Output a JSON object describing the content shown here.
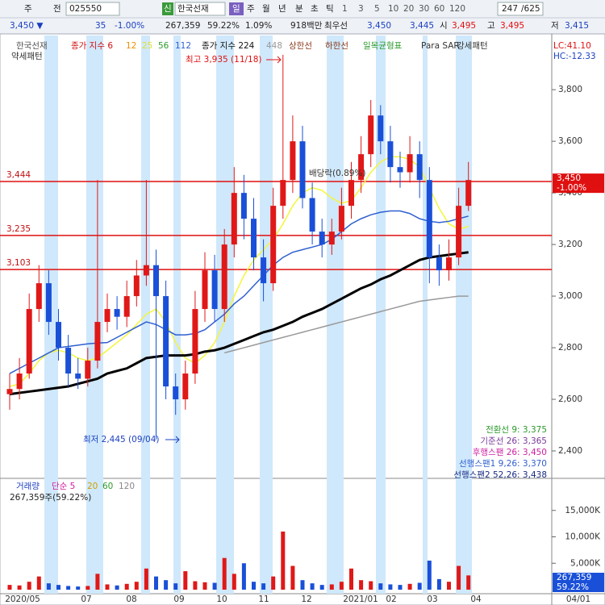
{
  "toolbar": {
    "market": "주",
    "mode": "전",
    "code": "025550",
    "badge": "신",
    "name": "한국선재",
    "periods": [
      "일",
      "주",
      "월",
      "년",
      "분",
      "초",
      "틱"
    ],
    "counts": [
      "1",
      "3",
      "5",
      "10",
      "20",
      "30",
      "60",
      "120"
    ],
    "page": "247",
    "total": "/625"
  },
  "quote": {
    "price": "3,450 ▼",
    "change": "35",
    "rate": "-1.00%",
    "volume": "267,359",
    "vol_rate": "59.22%",
    "turnover": "1.09%",
    "amount": "918백만",
    "best": "최우선",
    "ask": "3,450",
    "bid": "3,445",
    "open_label": "시",
    "open": "3,495",
    "high_label": "고",
    "high": "3,495",
    "low_label": "저",
    "low": "3,415"
  },
  "legend": {
    "name": "한국선재",
    "ma_label": "종가 지수 6",
    "ma12": "12",
    "ma25": "25",
    "ma56": "56",
    "ma112": "112",
    "ma_long": "종가 지수 224",
    "ma448": "448",
    "upper": "상한선",
    "lower": "하한선",
    "ichimoku": "일목균형표",
    "sar": "Para SAR",
    "bull": "강세패턴",
    "bear": "약세패턴",
    "lc": "LC:41.10",
    "hc": "HC:-12.33"
  },
  "indicators": [
    "전환선 9: 3,375",
    "기준선 26: 3,365",
    "후행스팬 26: 3,450",
    "선행스팬1 9,26: 3,370",
    "선행스팬2 52,26: 3,438"
  ],
  "chart_data": [
    {
      "type": "candlestick",
      "open": [
        2620,
        2640,
        2700,
        2950,
        3050,
        2900,
        2800,
        2700,
        2680,
        2750,
        2900,
        2950,
        2920,
        3000,
        3080,
        3120,
        3000,
        2650,
        2600,
        2700,
        2950,
        3100,
        2950,
        3200,
        3400,
        3300,
        3150,
        3050,
        3350,
        3450,
        3600,
        3380,
        3250,
        3200,
        3250,
        3350,
        3450,
        3550,
        3700,
        3600,
        3500,
        3480,
        3550,
        3450,
        3150,
        3100,
        3150,
        3350
      ],
      "high": [
        2700,
        2760,
        3010,
        3120,
        3100,
        2950,
        2850,
        2760,
        2800,
        3450,
        3010,
        3000,
        3060,
        3140,
        3450,
        3180,
        3060,
        2700,
        2750,
        3020,
        3170,
        3160,
        3260,
        3500,
        3470,
        3380,
        3220,
        3420,
        3935,
        3700,
        3660,
        3440,
        3300,
        3300,
        3420,
        3520,
        3620,
        3760,
        3740,
        3660,
        3560,
        3620,
        3600,
        3500,
        3200,
        3220,
        3420,
        3520
      ],
      "low": [
        2560,
        2600,
        2680,
        2900,
        2850,
        2750,
        2650,
        2640,
        2650,
        2720,
        2860,
        2870,
        2880,
        2960,
        3040,
        2445,
        2600,
        2540,
        2560,
        2660,
        2900,
        2900,
        2900,
        3150,
        3220,
        3100,
        2980,
        3020,
        3300,
        3400,
        3340,
        3200,
        3150,
        3160,
        3220,
        3300,
        3400,
        3500,
        3550,
        3440,
        3420,
        3440,
        3380,
        3050,
        3040,
        3060,
        3120,
        3330
      ],
      "close": [
        2640,
        2700,
        2950,
        3050,
        2900,
        2800,
        2700,
        2680,
        2750,
        2900,
        2950,
        2920,
        3000,
        3080,
        3120,
        3000,
        2650,
        2600,
        2700,
        2950,
        3100,
        2950,
        3200,
        3400,
        3300,
        3150,
        3050,
        3350,
        3450,
        3600,
        3380,
        3250,
        3200,
        3250,
        3350,
        3450,
        3550,
        3700,
        3600,
        3500,
        3480,
        3550,
        3450,
        3150,
        3100,
        3150,
        3350,
        3450
      ],
      "series": [
        {
          "name": "25",
          "color": "#f5f53a",
          "values": [
            2650,
            2660,
            2700,
            2750,
            2780,
            2790,
            2780,
            2760,
            2750,
            2760,
            2790,
            2820,
            2850,
            2890,
            2930,
            2950,
            2900,
            2820,
            2760,
            2740,
            2770,
            2820,
            2900,
            3000,
            3080,
            3140,
            3180,
            3220,
            3280,
            3350,
            3400,
            3420,
            3410,
            3380,
            3360,
            3370,
            3420,
            3480,
            3520,
            3540,
            3540,
            3530,
            3500,
            3420,
            3340,
            3280,
            3260,
            3270
          ]
        },
        {
          "name": "112",
          "color": "#2f5fd0",
          "values": [
            2700,
            2720,
            2740,
            2760,
            2780,
            2800,
            2805,
            2810,
            2815,
            2818,
            2820,
            2840,
            2860,
            2880,
            2900,
            2890,
            2870,
            2850,
            2850,
            2855,
            2870,
            2900,
            2930,
            2970,
            3000,
            3040,
            3080,
            3120,
            3150,
            3170,
            3180,
            3190,
            3200,
            3220,
            3250,
            3280,
            3300,
            3315,
            3325,
            3330,
            3330,
            3320,
            3300,
            3290,
            3285,
            3290,
            3300,
            3310
          ]
        },
        {
          "name": "종가 지수 224",
          "color": "#000000",
          "values": [
            2620,
            2625,
            2630,
            2635,
            2640,
            2645,
            2650,
            2660,
            2670,
            2680,
            2700,
            2710,
            2720,
            2740,
            2760,
            2765,
            2770,
            2770,
            2770,
            2775,
            2785,
            2790,
            2800,
            2815,
            2830,
            2845,
            2860,
            2870,
            2885,
            2900,
            2920,
            2935,
            2950,
            2970,
            2990,
            3010,
            3030,
            3045,
            3065,
            3080,
            3100,
            3120,
            3140,
            3150,
            3155,
            3160,
            3165,
            3170
          ]
        },
        {
          "name": "448",
          "color": "#999999",
          "values": [
            null,
            null,
            null,
            null,
            null,
            null,
            null,
            null,
            null,
            null,
            null,
            null,
            null,
            null,
            null,
            null,
            null,
            null,
            null,
            null,
            null,
            null,
            2780,
            2790,
            2800,
            2810,
            2820,
            2830,
            2840,
            2850,
            2860,
            2870,
            2880,
            2890,
            2900,
            2910,
            2920,
            2930,
            2940,
            2950,
            2960,
            2970,
            2980,
            2985,
            2990,
            2995,
            3000,
            3000
          ]
        }
      ],
      "ylim": [
        2300,
        4010
      ],
      "yticks": [
        {
          "value": 2400,
          "label": "2,400"
        },
        {
          "value": 2600,
          "label": "2,600"
        },
        {
          "value": 2800,
          "label": "2,800"
        },
        {
          "value": 3000,
          "label": "3,000"
        },
        {
          "value": 3200,
          "label": "3,200"
        },
        {
          "value": 3400,
          "label": "3,400"
        },
        {
          "value": 3600,
          "label": "3,600"
        },
        {
          "value": 3800,
          "label": "3,800"
        }
      ],
      "hlines": [
        {
          "value": 3444,
          "label": "3,444"
        },
        {
          "value": 3235,
          "label": "3,235"
        },
        {
          "value": 3103,
          "label": "3,103"
        }
      ],
      "last": {
        "value": 3450,
        "label": "3,450"
      },
      "last_change": "-1.00%",
      "annotations": {
        "max": "최고 3,935 (11/18)",
        "min": "최저 2,445 (09/04)",
        "dividend": "배당락(0.89%)"
      },
      "xticks": [
        "2020/05",
        "07",
        "08",
        "09",
        "10",
        "11",
        "12",
        "2021/01",
        "02",
        "03",
        "04"
      ],
      "xend": "04/01"
    },
    {
      "type": "bar",
      "name": "거래량",
      "legend": [
        "단순 5",
        "20",
        "60",
        "120"
      ],
      "caption": "267,359주(59.22%)",
      "values": [
        900,
        800,
        1500,
        2500,
        1200,
        900,
        700,
        600,
        700,
        3000,
        1000,
        800,
        1100,
        1500,
        4000,
        2500,
        1800,
        1200,
        3500,
        1600,
        1400,
        1300,
        6000,
        3000,
        5000,
        1500,
        1200,
        2500,
        11000,
        4500,
        1800,
        1200,
        900,
        1000,
        1500,
        4000,
        1800,
        1600,
        1200,
        1000,
        900,
        1100,
        1300,
        5500,
        2000,
        1500,
        4500,
        2700
      ],
      "ylim": [
        0,
        20000
      ],
      "yticks": [
        {
          "value": 5000,
          "label": "5,000K"
        },
        {
          "value": 10000,
          "label": "10,000K"
        },
        {
          "value": 15000,
          "label": "15,000K"
        }
      ],
      "last": "267,359",
      "last_rate": "59.22%"
    }
  ]
}
